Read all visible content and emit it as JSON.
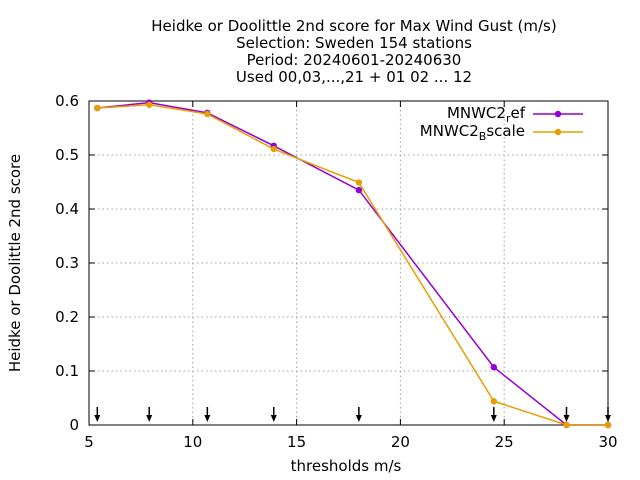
{
  "chart_data": {
    "type": "line",
    "title_lines": [
      "Heidke or Doolittle 2nd score  for Max Wind Gust (m/s)",
      "Selection: Sweden    154 stations",
      "Period: 20240601-20240630",
      "Used 00,03,...,21 + 01 02 ... 12"
    ],
    "xlabel": "thresholds m/s",
    "ylabel": "Heidke or Doolittle 2nd score",
    "xlim": [
      5,
      30
    ],
    "ylim": [
      0,
      0.6
    ],
    "xticks": [
      5,
      10,
      15,
      20,
      25,
      30
    ],
    "yticks": [
      0,
      0.1,
      0.2,
      0.3,
      0.4,
      0.5,
      0.6
    ],
    "xtick_labels": [
      "5",
      "10",
      "15",
      "20",
      "25",
      "30"
    ],
    "ytick_labels": [
      "0",
      "0.1",
      "0.2",
      "0.3",
      "0.4",
      "0.5",
      "0.6"
    ],
    "grid": true,
    "legend_position": "top-right",
    "markers_x": [
      5.4,
      7.9,
      10.7,
      13.9,
      18,
      24.5,
      28,
      30
    ],
    "series": [
      {
        "legend_main": "MNWC2",
        "legend_sub": "r",
        "legend_tail": "ef",
        "color": "#9400d3",
        "x": [
          5.4,
          7.9,
          10.7,
          13.9,
          18,
          24.5,
          28,
          30
        ],
        "y": [
          0.587,
          0.597,
          0.578,
          0.517,
          0.435,
          0.107,
          0.0,
          0.0
        ]
      },
      {
        "legend_main": "MNWC2",
        "legend_sub": "B",
        "legend_tail": "scale",
        "color": "#e69f00",
        "x": [
          5.4,
          7.9,
          10.7,
          13.9,
          18,
          24.5,
          28,
          30
        ],
        "y": [
          0.587,
          0.593,
          0.576,
          0.511,
          0.449,
          0.044,
          0.0,
          0.0
        ]
      }
    ]
  }
}
